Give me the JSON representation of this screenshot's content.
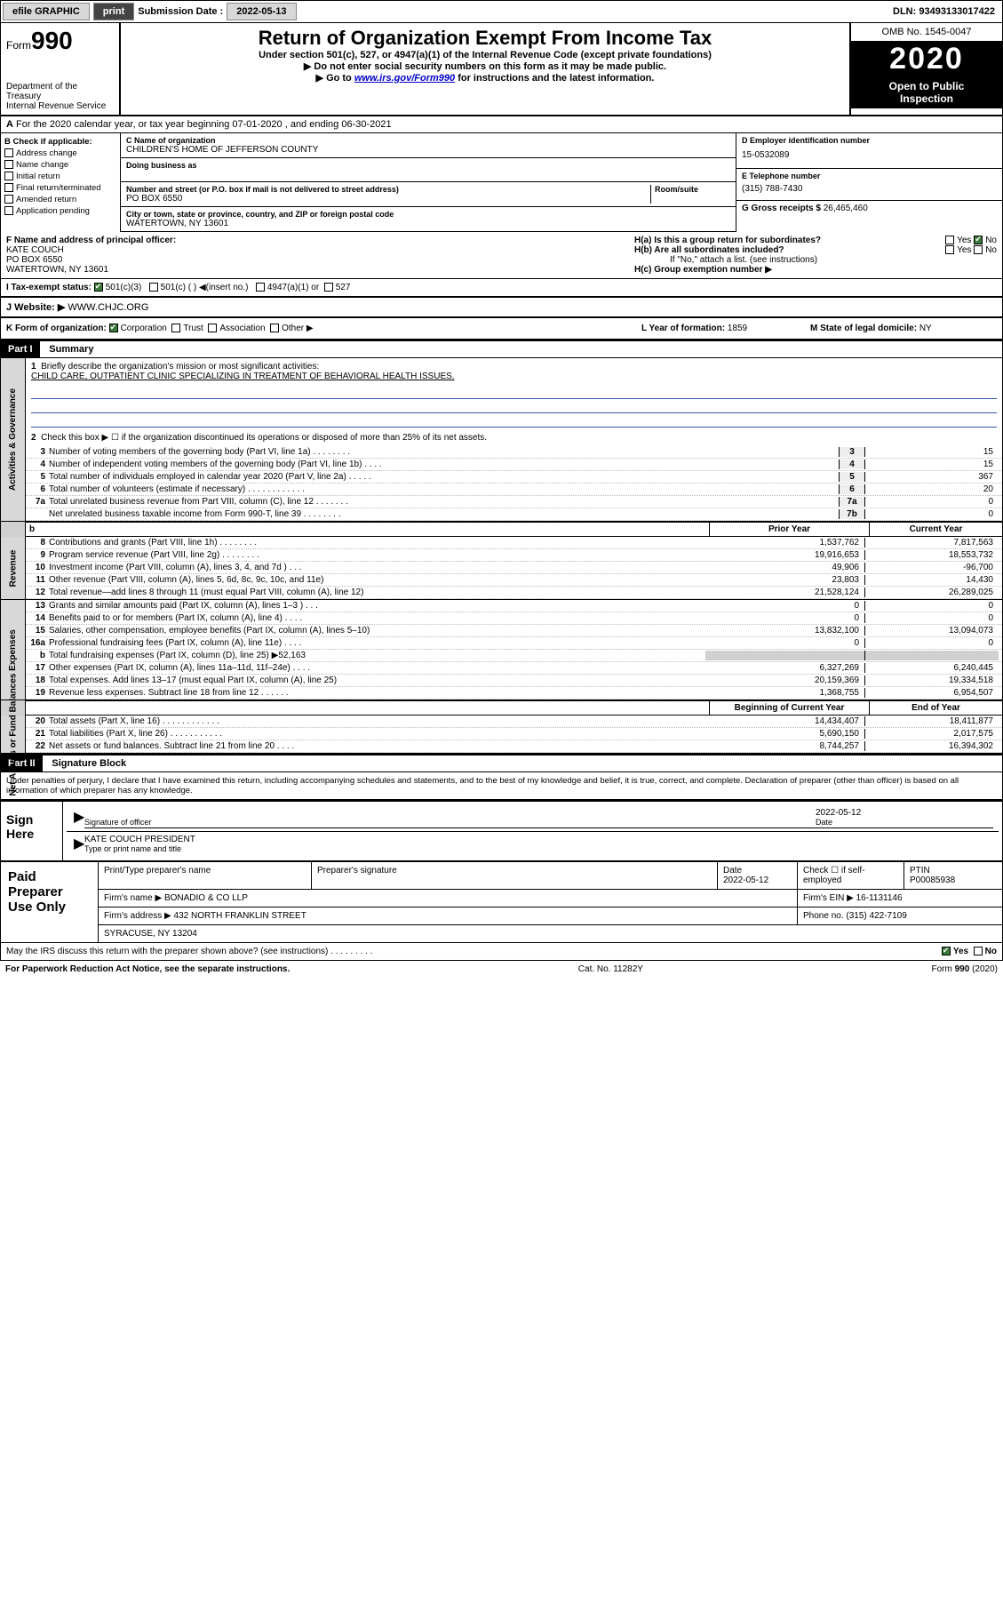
{
  "topbar": {
    "efile": "efile GRAPHIC",
    "print": "print",
    "sub_label": "Submission Date :",
    "sub_date": "2022-05-13",
    "dln_label": "DLN:",
    "dln": "93493133017422"
  },
  "header": {
    "form_word": "Form",
    "form_num": "990",
    "dept1": "Department of the Treasury",
    "dept2": "Internal Revenue Service",
    "title": "Return of Organization Exempt From Income Tax",
    "subtitle": "Under section 501(c), 527, or 4947(a)(1) of the Internal Revenue Code (except private foundations)",
    "note1": "▶ Do not enter social security numbers on this form as it may be made public.",
    "note2_pre": "▶ Go to ",
    "note2_link": "www.irs.gov/Form990",
    "note2_post": " for instructions and the latest information.",
    "omb": "OMB No. 1545-0047",
    "year": "2020",
    "open1": "Open to Public",
    "open2": "Inspection"
  },
  "A": {
    "text": "For the 2020 calendar year, or tax year beginning 07-01-2020    , and ending 06-30-2021"
  },
  "B": {
    "label": "B Check if applicable:",
    "opts": [
      "Address change",
      "Name change",
      "Initial return",
      "Final return/terminated",
      "Amended return",
      "Application pending"
    ]
  },
  "C": {
    "name_lab": "C Name of organization",
    "name": "CHILDREN'S HOME OF JEFFERSON COUNTY",
    "dba_lab": "Doing business as",
    "addr_lab": "Number and street (or P.O. box if mail is not delivered to street address)",
    "room_lab": "Room/suite",
    "addr": "PO BOX 6550",
    "city_lab": "City or town, state or province, country, and ZIP or foreign postal code",
    "city": "WATERTOWN, NY  13601"
  },
  "D": {
    "lab": "D Employer identification number",
    "val": "15-0532089"
  },
  "E": {
    "lab": "E Telephone number",
    "val": "(315) 788-7430"
  },
  "G": {
    "lab": "G Gross receipts $",
    "val": "26,465,460"
  },
  "F": {
    "lab": "F  Name and address of principal officer:",
    "l1": "KATE COUCH",
    "l2": "PO BOX 6550",
    "l3": "WATERTOWN, NY  13601"
  },
  "H": {
    "a": "H(a)  Is this a group return for subordinates?",
    "b": "H(b)  Are all subordinates included?",
    "bnote": "If \"No,\" attach a list. (see instructions)",
    "c": "H(c)  Group exemption number ▶",
    "yes": "Yes",
    "no": "No"
  },
  "I": {
    "lab": "I   Tax-exempt status:",
    "o1": "501(c)(3)",
    "o2": "501(c) (   ) ◀(insert no.)",
    "o3": "4947(a)(1) or",
    "o4": "527"
  },
  "J": {
    "lab": "J   Website: ▶",
    "val": "WWW.CHJC.ORG"
  },
  "K": {
    "lab": "K Form of organization:",
    "o1": "Corporation",
    "o2": "Trust",
    "o3": "Association",
    "o4": "Other ▶"
  },
  "L": {
    "lab": "L Year of formation:",
    "val": "1859"
  },
  "M": {
    "lab": "M State of legal domicile:",
    "val": "NY"
  },
  "part1": {
    "hdr": "Part I",
    "title": "Summary",
    "vlabels": [
      "Activities & Governance",
      "Revenue",
      "Expenses",
      "Net Assets or Fund Balances"
    ],
    "l1": "Briefly describe the organization's mission or most significant activities:",
    "l1v": "CHILD CARE, OUTPATIENT CLINIC SPECIALIZING IN TREATMENT OF BEHAVIORAL HEALTH ISSUES.",
    "l2": "Check this box ▶ ☐  if the organization discontinued its operations or disposed of more than 25% of its net assets.",
    "lines_single": [
      {
        "n": "3",
        "t": "Number of voting members of the governing body (Part VI, line 1a)  .   .   .   .   .   .   .   .",
        "c": "3",
        "v": "15"
      },
      {
        "n": "4",
        "t": "Number of independent voting members of the governing body (Part VI, line 1b)   .   .   .   .",
        "c": "4",
        "v": "15"
      },
      {
        "n": "5",
        "t": "Total number of individuals employed in calendar year 2020 (Part V, line 2a)   .   .   .   .   .",
        "c": "5",
        "v": "367"
      },
      {
        "n": "6",
        "t": "Total number of volunteers (estimate if necessary)   .   .   .   .   .   .   .   .   .   .   .   .",
        "c": "6",
        "v": "20"
      },
      {
        "n": "7a",
        "t": "Total unrelated business revenue from Part VIII, column (C), line 12   .   .   .   .   .   .   .",
        "c": "7a",
        "v": "0"
      },
      {
        "n": "",
        "t": "Net unrelated business taxable income from Form 990-T, line 39   .   .   .   .   .   .   .   .",
        "c": "7b",
        "v": "0"
      }
    ],
    "hdr_prior": "Prior Year",
    "hdr_curr": "Current Year",
    "rev": [
      {
        "n": "8",
        "t": "Contributions and grants (Part VIII, line 1h)   .   .   .   .   .   .   .   .",
        "p": "1,537,762",
        "c": "7,817,563"
      },
      {
        "n": "9",
        "t": "Program service revenue (Part VIII, line 2g)   .   .   .   .   .   .   .   .",
        "p": "19,916,653",
        "c": "18,553,732"
      },
      {
        "n": "10",
        "t": "Investment income (Part VIII, column (A), lines 3, 4, and 7d )   .   .   .",
        "p": "49,906",
        "c": "-96,700"
      },
      {
        "n": "11",
        "t": "Other revenue (Part VIII, column (A), lines 5, 6d, 8c, 9c, 10c, and 11e)",
        "p": "23,803",
        "c": "14,430"
      },
      {
        "n": "12",
        "t": "Total revenue—add lines 8 through 11 (must equal Part VIII, column (A), line 12)",
        "p": "21,528,124",
        "c": "26,289,025"
      }
    ],
    "exp": [
      {
        "n": "13",
        "t": "Grants and similar amounts paid (Part IX, column (A), lines 1–3 )   .   .   .",
        "p": "0",
        "c": "0"
      },
      {
        "n": "14",
        "t": "Benefits paid to or for members (Part IX, column (A), line 4)   .   .   .   .",
        "p": "0",
        "c": "0"
      },
      {
        "n": "15",
        "t": "Salaries, other compensation, employee benefits (Part IX, column (A), lines 5–10)",
        "p": "13,832,100",
        "c": "13,094,073"
      },
      {
        "n": "16a",
        "t": "Professional fundraising fees (Part IX, column (A), line 11e)   .   .   .   .",
        "p": "0",
        "c": "0"
      },
      {
        "n": "b",
        "t": "Total fundraising expenses (Part IX, column (D), line 25) ▶52,163",
        "p": "",
        "c": "",
        "gray": true
      },
      {
        "n": "17",
        "t": "Other expenses (Part IX, column (A), lines 11a–11d, 11f–24e)   .   .   .   .",
        "p": "6,327,269",
        "c": "6,240,445"
      },
      {
        "n": "18",
        "t": "Total expenses. Add lines 13–17 (must equal Part IX, column (A), line 25)",
        "p": "20,159,369",
        "c": "19,334,518"
      },
      {
        "n": "19",
        "t": "Revenue less expenses. Subtract line 18 from line 12  .   .   .   .   .   .",
        "p": "1,368,755",
        "c": "6,954,507"
      }
    ],
    "hdr_beg": "Beginning of Current Year",
    "hdr_end": "End of Year",
    "net": [
      {
        "n": "20",
        "t": "Total assets (Part X, line 16)   .   .   .   .   .   .   .   .   .   .   .   .",
        "p": "14,434,407",
        "c": "18,411,877"
      },
      {
        "n": "21",
        "t": "Total liabilities (Part X, line 26)   .   .   .   .   .   .   .   .   .   .   .",
        "p": "5,690,150",
        "c": "2,017,575"
      },
      {
        "n": "22",
        "t": "Net assets or fund balances. Subtract line 21 from line 20   .   .   .   .",
        "p": "8,744,257",
        "c": "16,394,302"
      }
    ]
  },
  "part2": {
    "hdr": "Part II",
    "title": "Signature Block",
    "pen": "Under penalties of perjury, I declare that I have examined this return, including accompanying schedules and statements, and to the best of my knowledge and belief, it is true, correct, and complete. Declaration of preparer (other than officer) is based on all information of which preparer has any knowledge."
  },
  "sign": {
    "lab": "Sign Here",
    "sig_officer": "Signature of officer",
    "date_lab": "Date",
    "date": "2022-05-12",
    "name": "KATE COUCH  PRESIDENT",
    "type_lab": "Type or print name and title"
  },
  "paid": {
    "lab": "Paid Preparer Use Only",
    "h1": "Print/Type preparer's name",
    "h2": "Preparer's signature",
    "h3": "Date",
    "h3v": "2022-05-12",
    "h4": "Check ☐ if self-employed",
    "h5": "PTIN",
    "h5v": "P00085938",
    "firm_lab": "Firm's name   ▶",
    "firm": "BONADIO & CO LLP",
    "ein_lab": "Firm's EIN ▶",
    "ein": "16-1131146",
    "addr_lab": "Firm's address ▶",
    "addr1": "432 NORTH FRANKLIN STREET",
    "addr2": "SYRACUSE, NY  13204",
    "phone_lab": "Phone no.",
    "phone": "(315) 422-7109"
  },
  "discuss": {
    "text": "May the IRS discuss this return with the preparer shown above? (see instructions)   .   .   .   .   .   .   .   .   .",
    "yes": "Yes",
    "no": "No"
  },
  "footer": {
    "l": "For Paperwork Reduction Act Notice, see the separate instructions.",
    "c": "Cat. No. 11282Y",
    "r": "Form 990 (2020)"
  }
}
